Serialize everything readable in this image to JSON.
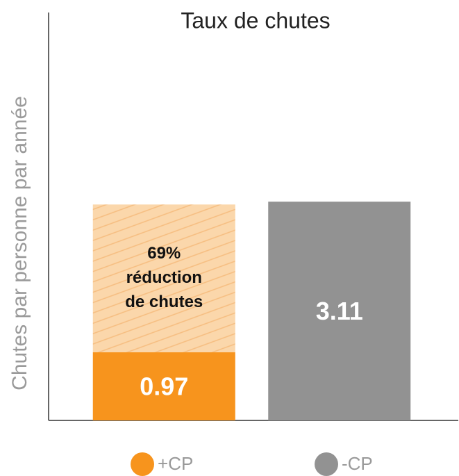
{
  "chart_data": {
    "type": "bar",
    "title": "Taux de chutes",
    "y_label": "Chutes par personne par année",
    "categories": [
      "+CP",
      "-CP"
    ],
    "values": [
      0.97,
      3.11
    ],
    "colors": [
      "#f7941d",
      "#929292"
    ],
    "overlay": {
      "values": [
        2.1,
        null
      ],
      "color": "#fbd7ab",
      "hatch_color": "#f6bd80",
      "label_lines": [
        "69%",
        "réduction",
        "de chutes"
      ]
    },
    "ylim": [
      0,
      5.8
    ],
    "legend": "bottom"
  }
}
